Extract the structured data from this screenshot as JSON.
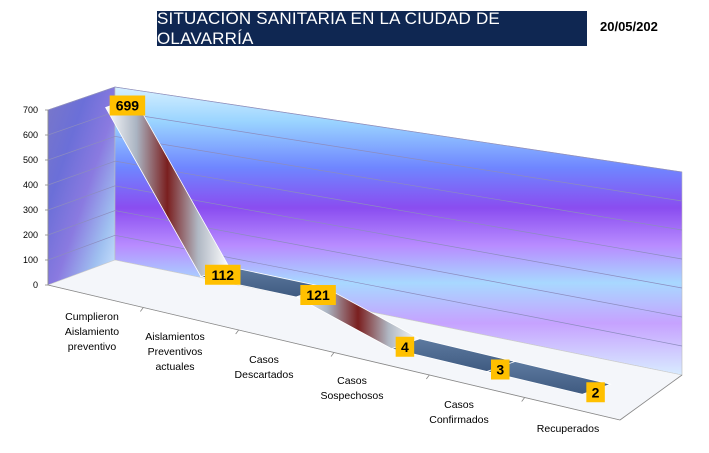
{
  "header": {
    "title": "SITUACIÓN SANITARIA EN LA CIUDAD DE OLAVARRÍA",
    "date": "20/05/202"
  },
  "chart_data": {
    "type": "line",
    "style": "3d-ribbon",
    "categories": [
      [
        "Cumplieron",
        "Aislamiento",
        "preventivo"
      ],
      [
        "Aislamientos",
        "Preventivos",
        "actuales"
      ],
      [
        "Casos",
        "Descartados"
      ],
      [
        "Casos",
        "Sospechosos"
      ],
      [
        "Casos",
        "Confirmados"
      ],
      [
        "Recuperados"
      ]
    ],
    "values": [
      699,
      112,
      121,
      4,
      3,
      2
    ],
    "data_labels": [
      "699",
      "112",
      "121",
      "4",
      "3",
      "2"
    ],
    "yticks": [
      "0",
      "100",
      "200",
      "300",
      "400",
      "500",
      "600",
      "700"
    ],
    "ylim": [
      0,
      700
    ],
    "grid": true,
    "legend": "none",
    "colors": {
      "label_box": "#ffc000",
      "ribbon_top": "#4a6a90",
      "ribbon_dark": "#7a1f1f",
      "wall_blue": "#6f86ff",
      "wall_purple": "#8a4df0",
      "wall_cyan": "#9ad4ff"
    }
  }
}
